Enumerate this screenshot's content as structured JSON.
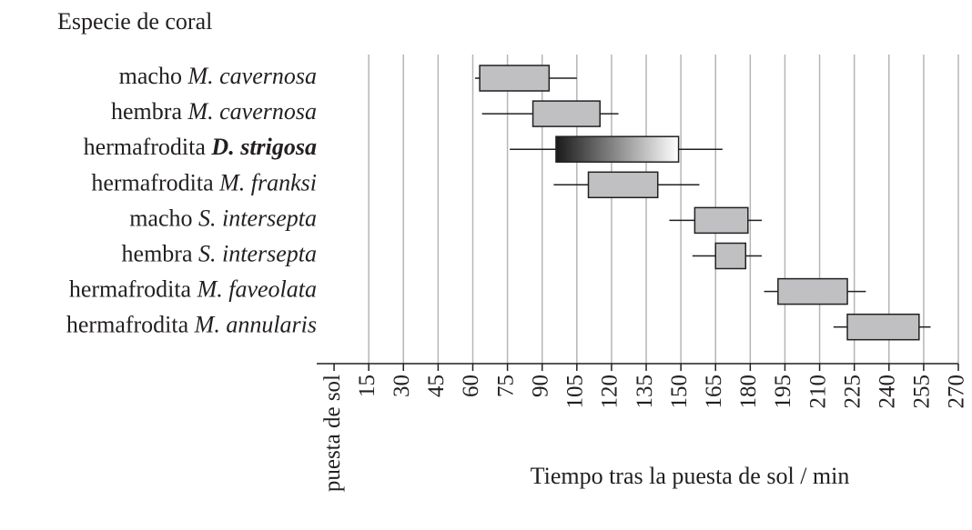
{
  "chart_data": {
    "type": "boxplot",
    "title": "Especie de coral",
    "x_label": "Tiempo tras la puesta de sol / min",
    "categories": [
      {
        "group": "macho",
        "species": "M. cavernosa"
      },
      {
        "group": "hembra",
        "species": "M. cavernosa"
      },
      {
        "group": "hermafrodita",
        "species": "D. strigosa"
      },
      {
        "group": "hermafrodita",
        "species": "M. franksi"
      },
      {
        "group": "macho",
        "species": "S. intersepta"
      },
      {
        "group": "hembra",
        "species": "S. intersepta"
      },
      {
        "group": "hermafrodita",
        "species": "M. faveolata"
      },
      {
        "group": "hermafrodita",
        "species": "M. annularis"
      }
    ],
    "boxes": [
      [
        61,
        63,
        93,
        105
      ],
      [
        64,
        86,
        115,
        123
      ],
      [
        76,
        96,
        149,
        168
      ],
      [
        95,
        110,
        140,
        158
      ],
      [
        145,
        156,
        179,
        185
      ],
      [
        155,
        165,
        178,
        185
      ],
      [
        186,
        192,
        222,
        230
      ],
      [
        216,
        222,
        253,
        258
      ]
    ],
    "colors": [
      "#c0c0c2",
      "#c0c0c2",
      [
        "#1a1a1a",
        "#ffffff"
      ],
      "#c0c0c2",
      "#c0c0c2",
      "#c0c0c2",
      "#c0c0c2",
      "#c0c0c2"
    ],
    "xlim": [
      -7.5,
      270
    ],
    "xticks": [
      {
        "value": 0,
        "label": "puesta de sol"
      },
      15,
      30,
      45,
      60,
      75,
      90,
      105,
      120,
      135,
      150,
      165,
      180,
      195,
      210,
      225,
      240,
      255,
      270
    ],
    "grid": true
  }
}
